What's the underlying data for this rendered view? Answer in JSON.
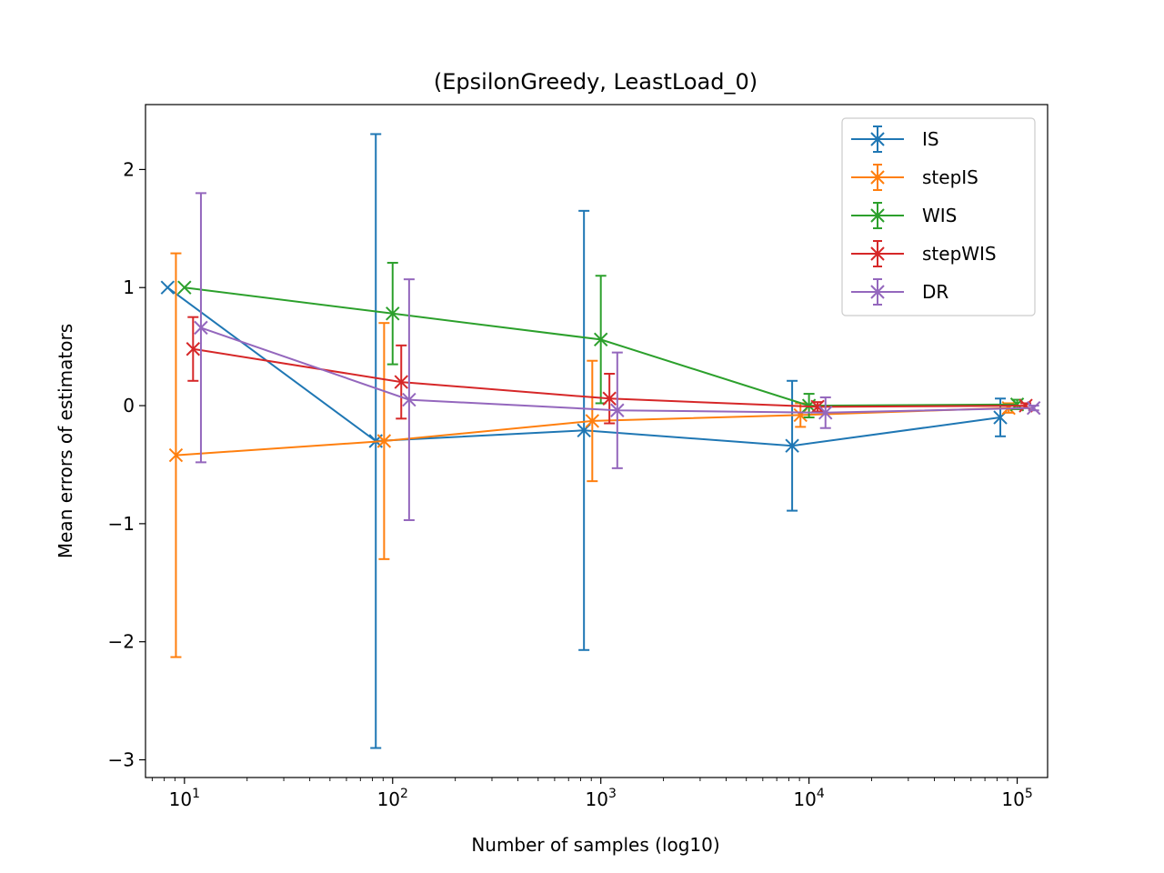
{
  "chart_data": {
    "type": "line",
    "title": "(EpsilonGreedy, LeastLoad_0)",
    "xlabel": "Number of samples (log10)",
    "ylabel": "Mean errors of estimators",
    "xscale": "log",
    "xlim": [
      6.5,
      140000
    ],
    "ylim": [
      -3.15,
      2.55
    ],
    "xticks": [
      10,
      100,
      1000,
      10000,
      100000
    ],
    "xtick_labels": [
      {
        "base": "10",
        "exp": "1"
      },
      {
        "base": "10",
        "exp": "2"
      },
      {
        "base": "10",
        "exp": "3"
      },
      {
        "base": "10",
        "exp": "4"
      },
      {
        "base": "10",
        "exp": "5"
      }
    ],
    "yticks": [
      2,
      1,
      0,
      -1,
      -2,
      -3
    ],
    "ytick_labels": [
      "2",
      "1",
      "0",
      "−1",
      "−2",
      "−3"
    ],
    "grid": false,
    "legend_position": "top-right",
    "marker": "x",
    "series": [
      {
        "name": "IS",
        "color": "#1f77b4",
        "x": [
          8.3,
          83,
          830,
          8300,
          83000
        ],
        "y": [
          1.0,
          -0.3,
          -0.21,
          -0.34,
          -0.1
        ],
        "yerr": [
          0.0,
          2.6,
          1.86,
          0.55,
          0.16
        ]
      },
      {
        "name": "stepIS",
        "color": "#ff7f0e",
        "x": [
          9.1,
          91,
          910,
          9100,
          91000
        ],
        "y": [
          -0.42,
          -0.3,
          -0.13,
          -0.08,
          -0.02
        ],
        "yerr": [
          1.71,
          1.0,
          0.51,
          0.1,
          0.04
        ]
      },
      {
        "name": "WIS",
        "color": "#2ca02c",
        "x": [
          10,
          100,
          1000,
          10000,
          100000
        ],
        "y": [
          1.0,
          0.78,
          0.56,
          0.0,
          0.01
        ],
        "yerr": [
          0.0,
          0.43,
          0.54,
          0.1,
          0.04
        ]
      },
      {
        "name": "stepWIS",
        "color": "#d62728",
        "x": [
          11,
          110,
          1100,
          11000,
          110000
        ],
        "y": [
          0.48,
          0.2,
          0.06,
          -0.01,
          0.0
        ],
        "yerr": [
          0.27,
          0.31,
          0.21,
          0.04,
          0.02
        ]
      },
      {
        "name": "DR",
        "color": "#9467bd",
        "x": [
          12,
          120,
          1200,
          12000,
          120000
        ],
        "y": [
          0.66,
          0.05,
          -0.04,
          -0.06,
          -0.02
        ],
        "yerr": [
          1.14,
          1.02,
          0.49,
          0.13,
          0.02
        ]
      }
    ]
  }
}
